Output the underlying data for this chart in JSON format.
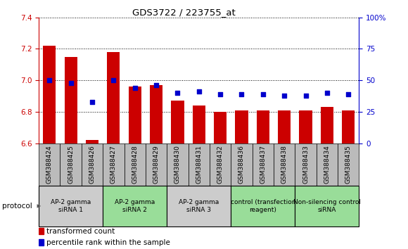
{
  "title": "GDS3722 / 223755_at",
  "samples": [
    "GSM388424",
    "GSM388425",
    "GSM388426",
    "GSM388427",
    "GSM388428",
    "GSM388429",
    "GSM388430",
    "GSM388431",
    "GSM388432",
    "GSM388436",
    "GSM388437",
    "GSM388438",
    "GSM388433",
    "GSM388434",
    "GSM388435"
  ],
  "bar_values": [
    7.22,
    7.15,
    6.62,
    7.18,
    6.96,
    6.97,
    6.87,
    6.84,
    6.8,
    6.81,
    6.81,
    6.81,
    6.81,
    6.83,
    6.81
  ],
  "dot_values": [
    50,
    48,
    33,
    50,
    44,
    46,
    40,
    41,
    39,
    39,
    39,
    38,
    38,
    40,
    39
  ],
  "ylim_left": [
    6.6,
    7.4
  ],
  "ylim_right": [
    0,
    100
  ],
  "yticks_left": [
    6.6,
    6.8,
    7.0,
    7.2,
    7.4
  ],
  "yticks_right": [
    0,
    25,
    50,
    75,
    100
  ],
  "bar_color": "#cc0000",
  "dot_color": "#0000cc",
  "bar_bottom": 6.6,
  "groups": [
    {
      "label": "AP-2 gamma\nsiRNA 1",
      "indices": [
        0,
        1,
        2
      ],
      "color": "#cccccc"
    },
    {
      "label": "AP-2 gamma\nsiRNA 2",
      "indices": [
        3,
        4,
        5
      ],
      "color": "#99dd99"
    },
    {
      "label": "AP-2 gamma\nsiRNA 3",
      "indices": [
        6,
        7,
        8
      ],
      "color": "#cccccc"
    },
    {
      "label": "control (transfection\nreagent)",
      "indices": [
        9,
        10,
        11
      ],
      "color": "#99dd99"
    },
    {
      "label": "Non-silencing control\nsiRNA",
      "indices": [
        12,
        13,
        14
      ],
      "color": "#99dd99"
    }
  ],
  "left_axis_color": "#cc0000",
  "right_axis_color": "#0000cc",
  "protocol_label": "protocol",
  "legend_bar_label": "transformed count",
  "legend_dot_label": "percentile rank within the sample",
  "background_color": "#ffffff",
  "tick_bg_color": "#bbbbbb"
}
